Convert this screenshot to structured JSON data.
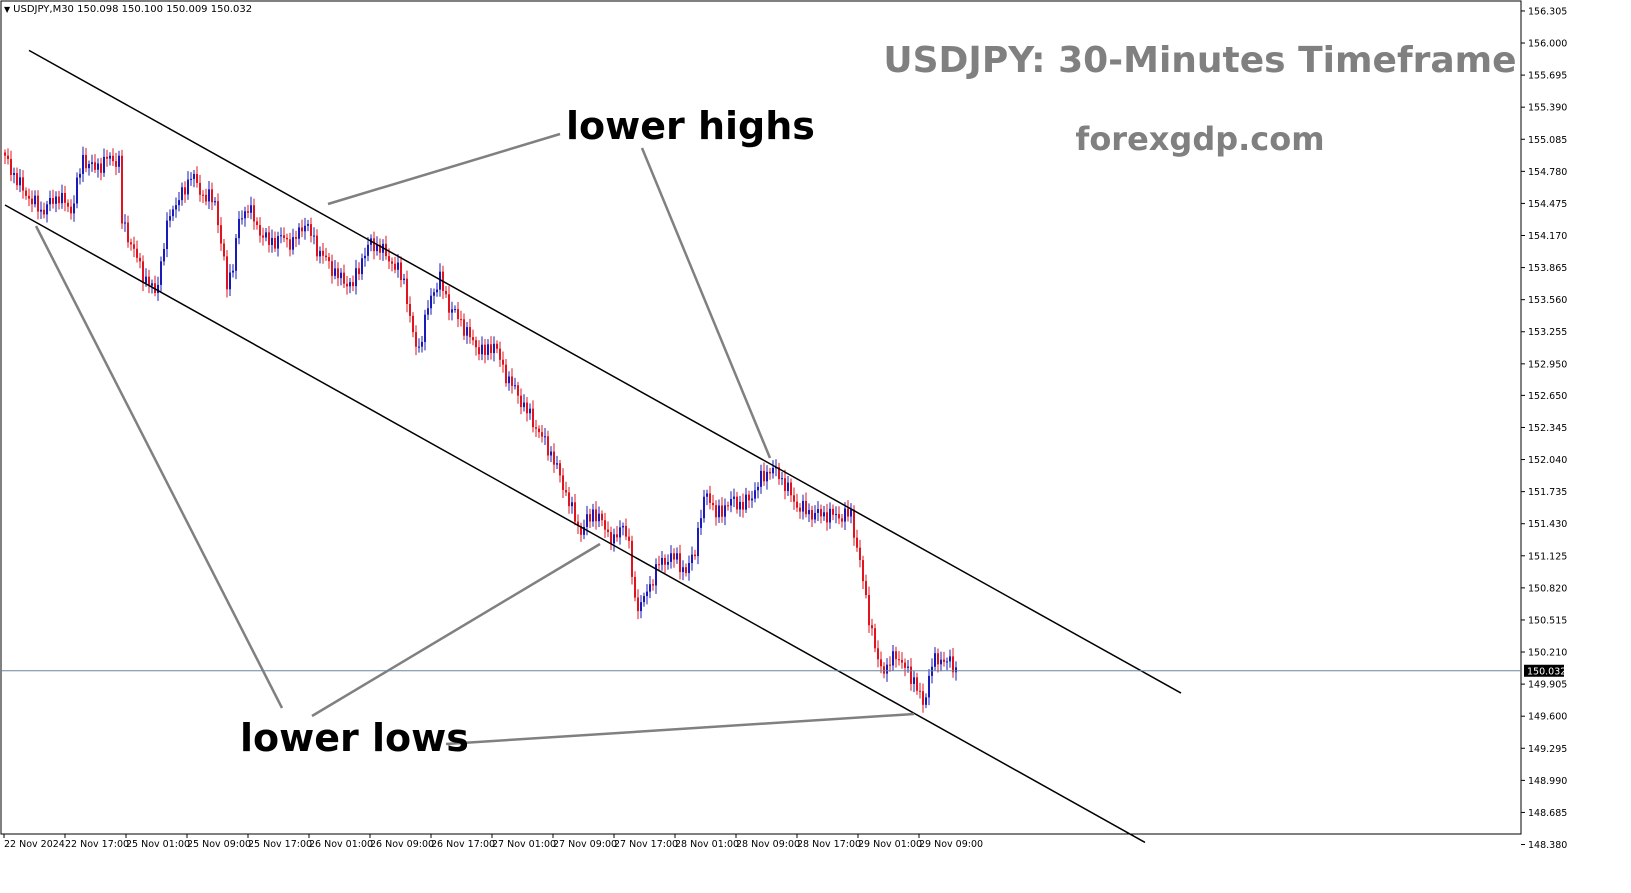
{
  "header": {
    "symbol": "USDJPY,M30",
    "ohlc": "150.098 150.100 150.009 150.032"
  },
  "title": "USDJPY: 30-Minutes Timeframe",
  "site": "forexgdp.com",
  "annotations": {
    "highs": "lower highs",
    "lows": "lower lows"
  },
  "colors": {
    "bull": "#1a1ab8",
    "bear": "#e0141e",
    "channel": "#000000",
    "pointer": "#808080",
    "current_line": "#6e84a0",
    "price_tag_bg": "#000000"
  },
  "chart_data": {
    "type": "candlestick",
    "title": "USDJPY: 30-Minutes Timeframe",
    "ylim": [
      148.48,
      156.39
    ],
    "y_ticks": [
      "156.305",
      "156.000",
      "155.695",
      "155.390",
      "155.085",
      "154.780",
      "154.475",
      "154.170",
      "153.865",
      "153.560",
      "153.255",
      "152.950",
      "152.650",
      "152.345",
      "152.040",
      "151.735",
      "151.430",
      "151.125",
      "150.820",
      "150.515",
      "150.210",
      "149.905",
      "149.600",
      "149.295",
      "148.990",
      "148.685",
      "148.380"
    ],
    "x_ticks": [
      "22 Nov 2024",
      "22 Nov 17:00",
      "25 Nov 01:00",
      "25 Nov 09:00",
      "25 Nov 17:00",
      "26 Nov 01:00",
      "26 Nov 09:00",
      "26 Nov 17:00",
      "27 Nov 01:00",
      "27 Nov 09:00",
      "27 Nov 17:00",
      "28 Nov 01:00",
      "28 Nov 09:00",
      "28 Nov 17:00",
      "29 Nov 01:00",
      "29 Nov 09:00"
    ],
    "current_price": "150.032",
    "price_path": [
      [
        0,
        154.9
      ],
      [
        6,
        154.6
      ],
      [
        12,
        154.4
      ],
      [
        18,
        154.55
      ],
      [
        22,
        154.4
      ],
      [
        26,
        154.9
      ],
      [
        30,
        154.8
      ],
      [
        34,
        154.9
      ],
      [
        38,
        154.88
      ],
      [
        39,
        154.3
      ],
      [
        42,
        154.1
      ],
      [
        46,
        153.8
      ],
      [
        50,
        153.62
      ],
      [
        52,
        153.9
      ],
      [
        55,
        154.4
      ],
      [
        58,
        154.5
      ],
      [
        62,
        154.75
      ],
      [
        66,
        154.55
      ],
      [
        70,
        154.5
      ],
      [
        72,
        154.1
      ],
      [
        74,
        153.7
      ],
      [
        76,
        153.9
      ],
      [
        78,
        154.3
      ],
      [
        81,
        154.45
      ],
      [
        84,
        154.25
      ],
      [
        88,
        154.1
      ],
      [
        92,
        154.15
      ],
      [
        96,
        154.1
      ],
      [
        100,
        154.3
      ],
      [
        104,
        154.05
      ],
      [
        108,
        153.9
      ],
      [
        112,
        153.75
      ],
      [
        116,
        153.7
      ],
      [
        119,
        153.95
      ],
      [
        122,
        154.1
      ],
      [
        125,
        154.05
      ],
      [
        128,
        153.95
      ],
      [
        133,
        153.75
      ],
      [
        136,
        153.2
      ],
      [
        138,
        153.1
      ],
      [
        142,
        153.6
      ],
      [
        145,
        153.75
      ],
      [
        148,
        153.5
      ],
      [
        152,
        153.35
      ],
      [
        156,
        153.15
      ],
      [
        160,
        153.05
      ],
      [
        163,
        153.15
      ],
      [
        166,
        152.9
      ],
      [
        170,
        152.7
      ],
      [
        174,
        152.5
      ],
      [
        178,
        152.3
      ],
      [
        182,
        152.1
      ],
      [
        186,
        151.8
      ],
      [
        189,
        151.55
      ],
      [
        192,
        151.35
      ],
      [
        196,
        151.55
      ],
      [
        200,
        151.4
      ],
      [
        203,
        151.25
      ],
      [
        206,
        151.45
      ],
      [
        208,
        151.2
      ],
      [
        210,
        150.7
      ],
      [
        212,
        150.65
      ],
      [
        215,
        150.85
      ],
      [
        218,
        151.05
      ],
      [
        221,
        151.1
      ],
      [
        224,
        151.1
      ],
      [
        227,
        150.95
      ],
      [
        230,
        151.2
      ],
      [
        232,
        151.5
      ],
      [
        234,
        151.75
      ],
      [
        237,
        151.5
      ],
      [
        240,
        151.6
      ],
      [
        243,
        151.65
      ],
      [
        246,
        151.6
      ],
      [
        249,
        151.7
      ],
      [
        252,
        151.85
      ],
      [
        255,
        151.95
      ],
      [
        258,
        151.9
      ],
      [
        261,
        151.75
      ],
      [
        264,
        151.6
      ],
      [
        267,
        151.55
      ],
      [
        270,
        151.52
      ],
      [
        274,
        151.52
      ],
      [
        278,
        151.5
      ],
      [
        282,
        151.52
      ],
      [
        285,
        151.05
      ],
      [
        288,
        150.55
      ],
      [
        291,
        150.1
      ],
      [
        294,
        150.05
      ],
      [
        297,
        150.2
      ],
      [
        300,
        150.05
      ],
      [
        303,
        149.95
      ],
      [
        306,
        149.7
      ],
      [
        309,
        150.1
      ],
      [
        312,
        150.15
      ],
      [
        315,
        150.1
      ],
      [
        317,
        150.05
      ]
    ],
    "channel_upper": {
      "x": [
        8,
        392
      ],
      "y": [
        155.93,
        149.82
      ]
    },
    "channel_lower": {
      "x": [
        0,
        380
      ],
      "y": [
        154.46,
        148.4
      ]
    }
  }
}
